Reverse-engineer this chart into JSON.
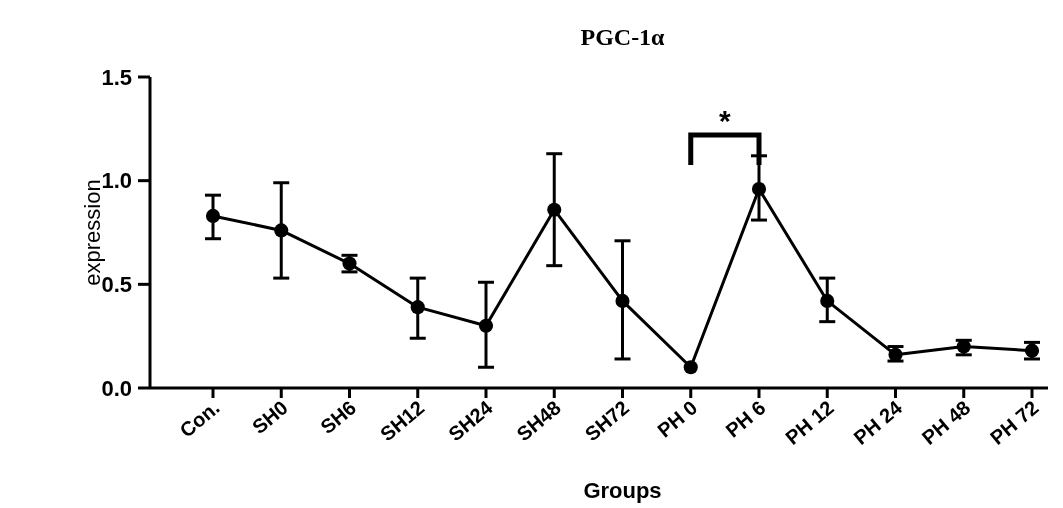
{
  "chart_data": {
    "type": "line",
    "title": "PGC-1α",
    "xlabel": "Groups",
    "ylabel": "expression",
    "categories": [
      "Con.",
      "SH0",
      "SH6",
      "SH12",
      "SH24",
      "SH48",
      "SH72",
      "PH 0",
      "PH 6",
      "PH 12",
      "PH 24",
      "PH 48",
      "PH 72"
    ],
    "series": [
      {
        "color": "#000000",
        "values": [
          0.83,
          0.76,
          0.6,
          0.39,
          0.3,
          0.86,
          0.42,
          0.1,
          0.96,
          0.42,
          0.16,
          0.2,
          0.18
        ],
        "errors": [
          [
            0.72,
            0.93
          ],
          [
            0.53,
            0.99
          ],
          [
            0.56,
            0.64
          ],
          [
            0.24,
            0.53
          ],
          [
            0.1,
            0.51
          ],
          [
            0.59,
            1.13
          ],
          [
            0.14,
            0.71
          ],
          null,
          [
            0.81,
            1.12
          ],
          [
            0.32,
            0.53
          ],
          [
            0.13,
            0.2
          ],
          [
            0.16,
            0.23
          ],
          [
            0.14,
            0.22
          ]
        ]
      }
    ],
    "ylim": [
      0,
      1.5
    ],
    "yticks": [
      {
        "value": 0,
        "label": "0.0"
      },
      0.5,
      {
        "value": 1,
        "label": "1.0"
      },
      1.5
    ],
    "marker": "circle",
    "line_style": "solid",
    "grid": false,
    "annotations": [
      "*"
    ]
  }
}
